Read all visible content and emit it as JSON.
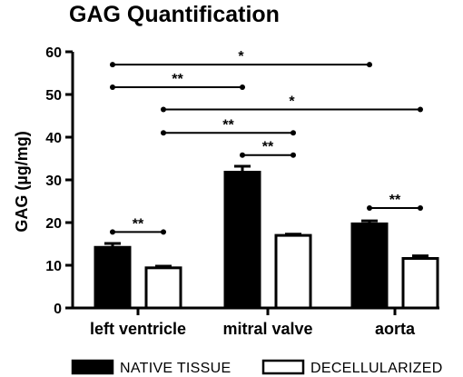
{
  "chart_data": {
    "type": "bar",
    "title": "GAG Quantification",
    "ylabel": "GAG (µg/mg)",
    "xlabel": "",
    "ylim": [
      0,
      60
    ],
    "yticks": [
      0,
      10,
      20,
      30,
      40,
      50,
      60
    ],
    "categories": [
      "left ventricle",
      "mitral valve",
      "aorta"
    ],
    "series": [
      {
        "name": "NATIVE TISSUE",
        "fill": "#000000",
        "values": [
          14.2,
          31.8,
          19.7
        ],
        "errors": [
          0.9,
          1.4,
          0.7
        ]
      },
      {
        "name": "DECELLULARIZED",
        "fill": "#ffffff",
        "values": [
          9.4,
          17.0,
          11.6
        ],
        "errors": [
          0.4,
          0.3,
          0.6
        ]
      }
    ],
    "legend_position": "bottom",
    "grid": false,
    "significance": [
      {
        "label": "*",
        "from": [
          0,
          0
        ],
        "to": [
          2,
          0
        ],
        "y": 57.0
      },
      {
        "label": "**",
        "from": [
          0,
          0
        ],
        "to": [
          1,
          0
        ],
        "y": 51.7
      },
      {
        "label": "*",
        "from": [
          0,
          1
        ],
        "to": [
          2,
          1
        ],
        "y": 46.5
      },
      {
        "label": "**",
        "from": [
          0,
          1
        ],
        "to": [
          1,
          1
        ],
        "y": 41.0
      },
      {
        "label": "**",
        "from": [
          1,
          0
        ],
        "to": [
          1,
          1
        ],
        "y": 35.8
      },
      {
        "label": "**",
        "from": [
          2,
          0
        ],
        "to": [
          2,
          1
        ],
        "y": 23.4
      },
      {
        "label": "**",
        "from": [
          0,
          0
        ],
        "to": [
          0,
          1
        ],
        "y": 17.8
      }
    ]
  }
}
